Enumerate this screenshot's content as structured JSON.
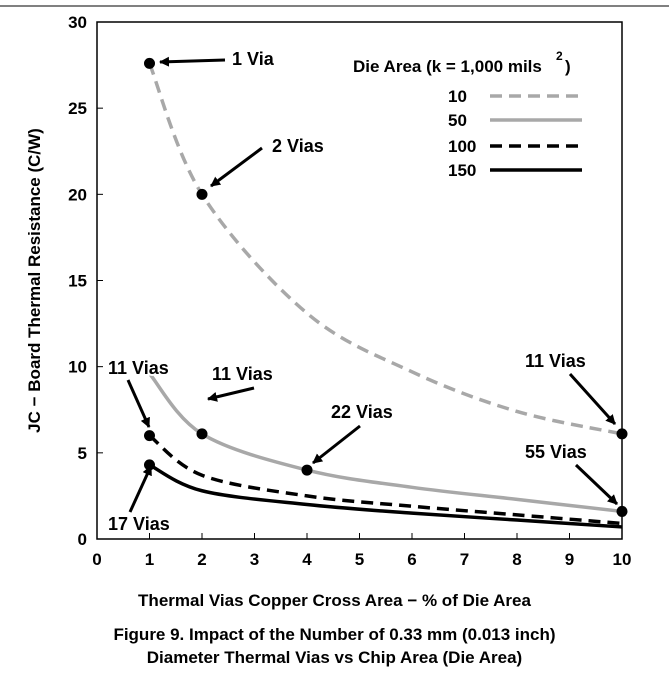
{
  "chart_data": {
    "type": "line",
    "xlabel": "Thermal Vias Copper Cross Area − % of Die Area",
    "ylabel": "JC − Board Thermal Resistance (C/W)",
    "x_ticks": [
      "0",
      "1",
      "2",
      "3",
      "4",
      "5",
      "6",
      "7",
      "8",
      "9",
      "10"
    ],
    "y_ticks": [
      "0",
      "5",
      "10",
      "15",
      "20",
      "25",
      "30"
    ],
    "xlim": [
      0,
      10
    ],
    "ylim": [
      0,
      30
    ],
    "legend_title": "Die Area (k = 1,000 mils",
    "legend_title_sup": "2",
    "legend_title_end": ")",
    "legend_position": "top-right",
    "series": [
      {
        "name": "10",
        "color": "#a8a8a8",
        "style": "dashed",
        "x": [
          1,
          2,
          4,
          6,
          8,
          10
        ],
        "y": [
          27.6,
          20.0,
          13.1,
          9.7,
          7.4,
          6.1
        ]
      },
      {
        "name": "50",
        "color": "#a8a8a8",
        "style": "solid",
        "x": [
          1,
          2,
          4,
          6,
          8,
          10
        ],
        "y": [
          9.6,
          6.1,
          4.0,
          3.0,
          2.3,
          1.6
        ]
      },
      {
        "name": "100",
        "color": "#000000",
        "style": "dashed",
        "x": [
          1,
          2,
          4,
          6,
          8,
          10
        ],
        "y": [
          6.0,
          3.7,
          2.5,
          1.9,
          1.4,
          0.9
        ]
      },
      {
        "name": "150",
        "color": "#000000",
        "style": "solid",
        "x": [
          1,
          2,
          4,
          6,
          8,
          10
        ],
        "y": [
          4.3,
          2.8,
          2.0,
          1.5,
          1.1,
          0.7
        ]
      }
    ],
    "markers": [
      {
        "x": 1,
        "y": 27.6
      },
      {
        "x": 2,
        "y": 20.0
      },
      {
        "x": 2,
        "y": 6.1
      },
      {
        "x": 4,
        "y": 4.0
      },
      {
        "x": 1,
        "y": 6.0
      },
      {
        "x": 1,
        "y": 4.3
      },
      {
        "x": 10,
        "y": 6.1
      },
      {
        "x": 10,
        "y": 1.6
      }
    ],
    "annotations": [
      {
        "text": "1 Via",
        "x": 1,
        "y": 27.6
      },
      {
        "text": "2 Vias",
        "x": 2,
        "y": 20.0
      },
      {
        "text": "11 Vias",
        "x": 2,
        "y": 6.1
      },
      {
        "text": "22 Vias",
        "x": 4,
        "y": 4.0
      },
      {
        "text": "11 Vias",
        "x": 1,
        "y": 6.0
      },
      {
        "text": "17 Vias",
        "x": 1,
        "y": 4.3
      },
      {
        "text": "11 Vias",
        "x": 10,
        "y": 6.1
      },
      {
        "text": "55 Vias",
        "x": 10,
        "y": 1.6
      }
    ]
  },
  "caption": {
    "line1": "Figure 9. Impact of the Number of 0.33 mm (0.013 inch)",
    "line2": "Diameter Thermal Vias vs Chip Area (Die Area)"
  }
}
